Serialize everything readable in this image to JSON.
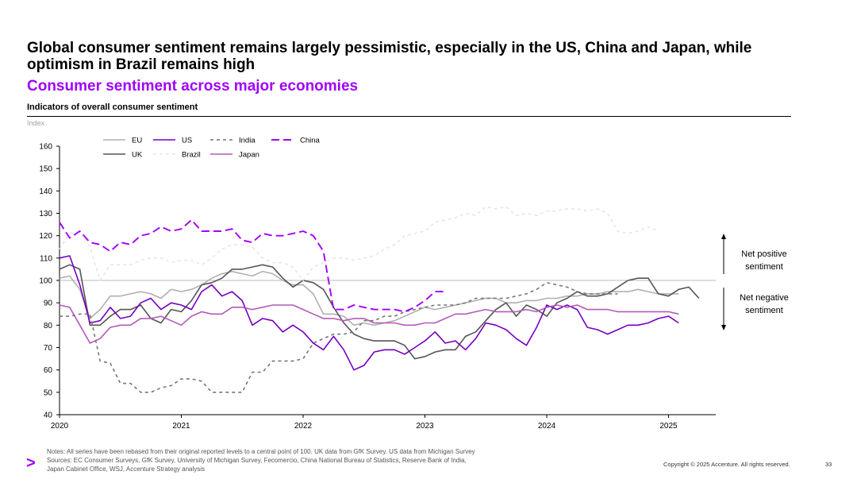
{
  "slide": {
    "title": "Global consumer sentiment remains largely pessimistic, especially in the US, China and Japan, while optimism in Brazil remains high",
    "subtitle": "Consumer sentiment across major economies",
    "chart_heading": "Indicators of overall consumer sentiment",
    "unit": "Index",
    "annotation_positive_1": "Net positive",
    "annotation_positive_2": "sentiment",
    "annotation_negative_1": "Net negative",
    "annotation_negative_2": "sentiment",
    "notes_line1": "Notes: All series have been rebased from their original reported levels to a central point of 100. UK data from GfK Survey. US data from Michigan Survey",
    "notes_line2": "Sources: EC Consumer Surveys, GfK Survey, University of Michigan Survey, Fecomercio, China National Bureau of Statistics, Reserve Bank of India,",
    "notes_line3": "Japan Cabinet Office, WSJ, Accenture Strategy analysis",
    "logo_glyph": ">",
    "copyright": "Copyright © 2025 Accenture. All rights reserved.",
    "page_number": "33"
  },
  "chart_data": {
    "type": "line",
    "title": "Indicators of overall consumer sentiment",
    "ylabel": "Index",
    "ylim": [
      40,
      160
    ],
    "yticks": [
      40,
      50,
      60,
      70,
      80,
      90,
      100,
      110,
      120,
      130,
      140,
      150,
      160
    ],
    "xlim": [
      2020.0,
      2025.5
    ],
    "xticks": [
      2020,
      2021,
      2022,
      2023,
      2024,
      2025
    ],
    "reference_line": 100,
    "legend": [
      [
        "EU",
        "US",
        "India",
        "China"
      ],
      [
        "UK",
        "Brazil",
        "Japan"
      ]
    ],
    "series": [
      {
        "name": "EU",
        "color": "#b0b0b0",
        "dash": "solid",
        "width": 1.6,
        "start": 2020.0,
        "step": 0.0833333,
        "values": [
          101,
          102,
          96,
          83,
          87,
          93,
          93,
          94,
          95,
          94,
          92,
          96,
          95,
          96,
          98,
          101,
          103,
          104,
          103,
          102,
          104,
          103,
          100,
          98,
          98,
          94,
          85,
          85,
          84,
          80,
          81,
          80,
          81,
          82,
          84,
          86,
          88,
          87,
          88,
          89,
          90,
          91,
          92,
          92,
          90,
          90,
          91,
          91,
          92,
          92,
          93,
          93,
          94,
          94,
          95,
          95,
          95,
          96,
          95,
          94,
          94,
          94
        ]
      },
      {
        "name": "UK",
        "color": "#555555",
        "dash": "solid",
        "width": 1.6,
        "start": 2020.0,
        "step": 0.0833333,
        "values": [
          105,
          107,
          105,
          80,
          80,
          84,
          87,
          87,
          89,
          83,
          81,
          87,
          86,
          91,
          98,
          99,
          101,
          105,
          105,
          106,
          107,
          106,
          101,
          97,
          100,
          99,
          96,
          88,
          81,
          76,
          74,
          73,
          73,
          73,
          71,
          65,
          66,
          68,
          69,
          69,
          75,
          77,
          82,
          87,
          90,
          84,
          89,
          87,
          84,
          90,
          92,
          95,
          93,
          93,
          94,
          97,
          100,
          101,
          101,
          94,
          93,
          96,
          97,
          92
        ]
      },
      {
        "name": "US",
        "color": "#7500c0",
        "dash": "solid",
        "width": 1.6,
        "start": 2020.0,
        "step": 0.0833333,
        "values": [
          110,
          111,
          98,
          81,
          82,
          88,
          83,
          84,
          90,
          92,
          87,
          90,
          89,
          87,
          95,
          98,
          93,
          95,
          91,
          80,
          83,
          82,
          77,
          80,
          77,
          72,
          69,
          75,
          69,
          60,
          62,
          68,
          69,
          69,
          67,
          70,
          73,
          77,
          72,
          73,
          69,
          74,
          81,
          80,
          78,
          74,
          71,
          79,
          89,
          87,
          89,
          87,
          79,
          78,
          76,
          78,
          80,
          80,
          81,
          83,
          84,
          81
        ]
      },
      {
        "name": "Brazil",
        "color": "#e6e6e6",
        "dash": "dash",
        "width": 1.6,
        "start": 2020.0,
        "step": 0.0833333,
        "values": [
          114,
          121,
          122,
          115,
          100,
          107,
          107,
          107,
          109,
          110,
          110,
          108,
          109,
          109,
          107,
          110,
          114,
          116,
          116,
          115,
          110,
          108,
          108,
          106,
          100,
          106,
          108,
          110,
          110,
          109,
          110,
          111,
          114,
          116,
          120,
          121,
          122,
          126,
          127,
          128,
          130,
          129,
          133,
          132,
          133,
          129,
          130,
          129,
          131,
          131,
          132,
          132,
          131,
          132,
          130,
          122,
          121,
          122,
          124,
          122
        ]
      },
      {
        "name": "India",
        "color": "#777777",
        "dash": "dash",
        "width": 1.6,
        "start": 2020.0,
        "step": 0.0833333,
        "values": [
          84,
          84,
          85,
          85,
          64,
          63,
          54,
          54,
          50,
          50,
          52,
          53,
          56,
          56,
          55,
          50,
          50,
          50,
          50,
          59,
          59,
          64,
          64,
          64,
          65,
          72,
          74,
          76,
          76,
          77,
          82,
          82,
          84,
          84,
          86,
          87,
          88,
          89,
          89,
          89,
          90,
          92,
          92,
          92,
          92,
          93,
          94,
          96,
          99,
          98,
          97,
          95,
          94,
          94,
          94,
          94
        ]
      },
      {
        "name": "China",
        "color": "#a100ff",
        "dash": "longdash",
        "width": 1.9,
        "start": 2020.0,
        "step": 0.0833333,
        "values": [
          126,
          119,
          122,
          117,
          116,
          113,
          117,
          116,
          120,
          121,
          124,
          122,
          123,
          127,
          122,
          122,
          122,
          123,
          118,
          117,
          121,
          120,
          120,
          121,
          122,
          120,
          113,
          87,
          87,
          89,
          88,
          87,
          87,
          87,
          86,
          88,
          91,
          95,
          95
        ]
      },
      {
        "name": "Japan",
        "color": "#b25ab8",
        "dash": "solid",
        "width": 1.6,
        "start": 2020.0,
        "step": 0.0833333,
        "values": [
          89,
          88,
          80,
          72,
          74,
          79,
          80,
          80,
          83,
          83,
          84,
          82,
          80,
          84,
          86,
          85,
          85,
          88,
          88,
          87,
          88,
          89,
          89,
          89,
          87,
          85,
          83,
          83,
          82,
          83,
          83,
          81,
          81,
          81,
          80,
          80,
          81,
          81,
          83,
          85,
          85,
          86,
          87,
          86,
          86,
          86,
          87,
          86,
          88,
          89,
          88,
          89,
          87,
          87,
          87,
          86,
          86,
          86,
          86,
          86,
          86,
          85
        ]
      }
    ]
  }
}
